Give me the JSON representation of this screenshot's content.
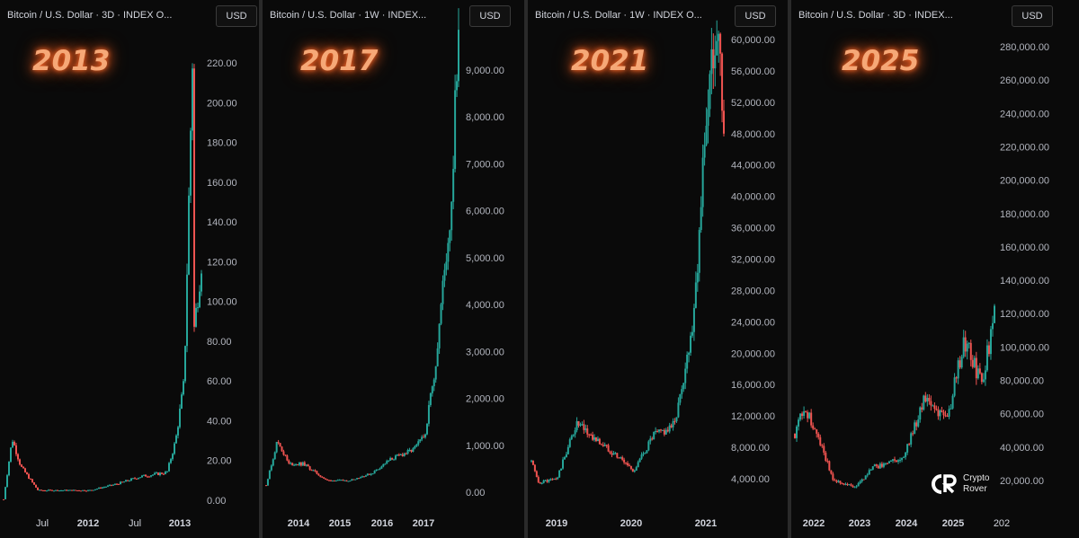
{
  "panels": [
    {
      "header": "Bitcoin / U.S. Dollar · 3D · INDEX  O...",
      "currency": "USD",
      "year_label": "2013"
    },
    {
      "header": "Bitcoin / U.S. Dollar · 1W · INDEX...",
      "currency": "USD",
      "year_label": "2017"
    },
    {
      "header": "Bitcoin / U.S. Dollar · 1W · INDEX  O...",
      "currency": "USD",
      "year_label": "2021"
    },
    {
      "header": "Bitcoin / U.S. Dollar · 3D · INDEX...",
      "currency": "USD",
      "year_label": "2025"
    }
  ],
  "watermark": {
    "line1": "Crypto",
    "line2": "Rover",
    "icon": "cr-logo-icon"
  },
  "colors": {
    "up": "#26a69a",
    "down": "#ef5350",
    "peak_up": "#3fbf5f"
  },
  "chart_data": [
    {
      "type": "line",
      "title": "",
      "series": [
        {
          "x": [
            "2011-06",
            "2011-07",
            "2011-08",
            "2011-10",
            "2012-01",
            "2012-04",
            "2012-07",
            "2012-10",
            "2013-01",
            "2013-02",
            "2013-03",
            "2013-04",
            "2013-04",
            "2013-05"
          ],
          "y": [
            0.5,
            31,
            17,
            5,
            5,
            5,
            8,
            12,
            14,
            30,
            60,
            230,
            80,
            120
          ]
        }
      ],
      "x_ticks": [
        "Jul",
        "2012",
        "Jul",
        "2013"
      ],
      "y_ticks": [
        "0.00",
        "20.00",
        "40.00",
        "60.00",
        "80.00",
        "100.00",
        "120.00",
        "140.00",
        "160.00",
        "180.00",
        "200.00",
        "220.00"
      ],
      "ylim": [
        -5,
        240
      ]
    },
    {
      "type": "line",
      "title": "",
      "series": [
        {
          "x": [
            "2013-09",
            "2013-12",
            "2014-03",
            "2014-07",
            "2015-01",
            "2015-07",
            "2016-01",
            "2016-06",
            "2016-12",
            "2017-03",
            "2017-06",
            "2017-08",
            "2017-10",
            "2017-12"
          ],
          "y": [
            150,
            1100,
            600,
            600,
            250,
            250,
            400,
            700,
            900,
            1200,
            2800,
            4500,
            6000,
            10000
          ]
        }
      ],
      "x_ticks": [
        "2014",
        "2015",
        "2016",
        "2017"
      ],
      "y_ticks": [
        "0.00",
        "1,000.00",
        "2,000.00",
        "3,000.00",
        "4,000.00",
        "5,000.00",
        "6,000.00",
        "7,000.00",
        "8,000.00",
        "9,000.00"
      ],
      "ylim": [
        -100,
        10300
      ]
    },
    {
      "type": "line",
      "title": "",
      "series": [
        {
          "x": [
            "2018-11",
            "2018-12",
            "2019-03",
            "2019-06",
            "2019-09",
            "2019-12",
            "2020-03",
            "2020-06",
            "2020-09",
            "2020-10",
            "2020-12",
            "2021-01",
            "2021-02",
            "2021-04",
            "2021-05"
          ],
          "y": [
            6300,
            3500,
            4000,
            11000,
            9000,
            7200,
            5000,
            9500,
            10500,
            13500,
            23000,
            33000,
            48000,
            63000,
            47000
          ]
        }
      ],
      "x_ticks": [
        "2019",
        "2020",
        "2021"
      ],
      "y_ticks": [
        "4,000.00",
        "8,000.00",
        "12,000.00",
        "16,000.00",
        "20,000.00",
        "24,000.00",
        "28,000.00",
        "32,000.00",
        "36,000.00",
        "40,000.00",
        "44,000.00",
        "48,000.00",
        "52,000.00",
        "56,000.00",
        "60,000.00"
      ],
      "ylim": [
        1000,
        63000
      ]
    },
    {
      "type": "line",
      "title": "",
      "series": [
        {
          "x": [
            "2021-09",
            "2021-11",
            "2022-03",
            "2022-06",
            "2022-11",
            "2023-03",
            "2023-06",
            "2023-10",
            "2024-03",
            "2024-08",
            "2024-12",
            "2025-04",
            "2025-07"
          ],
          "y": [
            48000,
            65000,
            42000,
            20000,
            16000,
            28000,
            30000,
            34000,
            70000,
            55000,
            105000,
            78000,
            118000
          ]
        }
      ],
      "x_ticks": [
        "2022",
        "2023",
        "2024",
        "2025",
        "202"
      ],
      "y_ticks": [
        "20,000.00",
        "40,000.00",
        "60,000.00",
        "80,000.00",
        "100,000.00",
        "120,000.00",
        "140,000.00",
        "160,000.00",
        "180,000.00",
        "200,000.00",
        "220,000.00",
        "240,000.00",
        "260,000.00",
        "280,000.00"
      ],
      "ylim": [
        10000,
        295000
      ]
    }
  ]
}
